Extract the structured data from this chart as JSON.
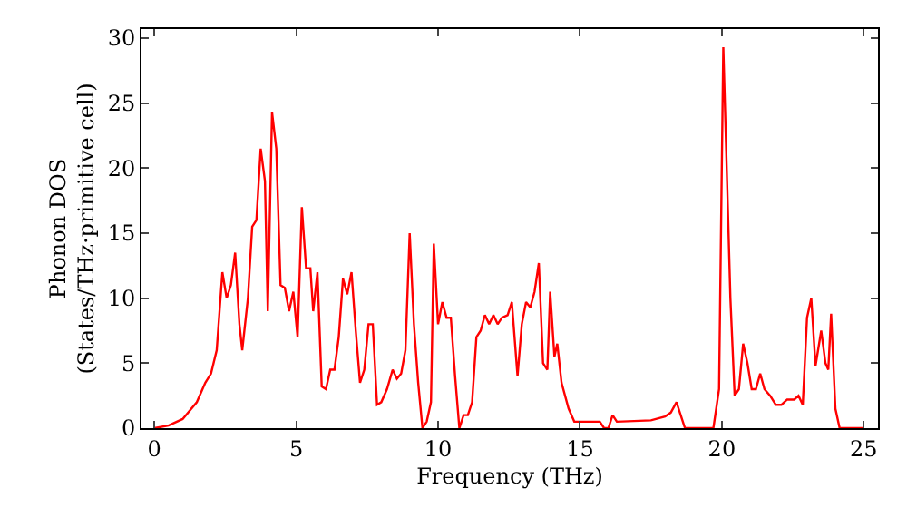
{
  "chart_data": {
    "type": "line",
    "xlabel": "Frequency (THz)",
    "ylabel": "Phonon DOS\n(States/THz·primitive cell)",
    "xlim": [
      -0.45,
      25.5
    ],
    "ylim": [
      0,
      30.7
    ],
    "xticks": [
      0,
      5,
      10,
      15,
      20,
      25
    ],
    "yticks": [
      0,
      5,
      10,
      15,
      20,
      25,
      30
    ],
    "marker": "none",
    "line_style": "solid",
    "x": [
      0,
      0.5,
      1,
      1.5,
      1.8,
      2,
      2.2,
      2.4,
      2.55,
      2.7,
      2.85,
      3.0,
      3.1,
      3.3,
      3.45,
      3.6,
      3.75,
      3.9,
      4.0,
      4.15,
      4.3,
      4.45,
      4.6,
      4.75,
      4.9,
      5.05,
      5.2,
      5.35,
      5.5,
      5.6,
      5.75,
      5.9,
      6.05,
      6.2,
      6.35,
      6.5,
      6.65,
      6.8,
      6.95,
      7.1,
      7.25,
      7.4,
      7.55,
      7.7,
      7.85,
      8.0,
      8.2,
      8.4,
      8.55,
      8.7,
      8.85,
      9.0,
      9.15,
      9.3,
      9.45,
      9.6,
      9.75,
      9.85,
      10.0,
      10.15,
      10.3,
      10.45,
      10.6,
      10.75,
      10.9,
      11.05,
      11.2,
      11.35,
      11.5,
      11.65,
      11.8,
      11.95,
      12.1,
      12.25,
      12.45,
      12.6,
      12.8,
      12.95,
      13.1,
      13.25,
      13.4,
      13.55,
      13.7,
      13.85,
      13.95,
      14.1,
      14.2,
      14.35,
      14.6,
      14.8,
      15.5,
      15.7,
      15.85,
      16.0,
      16.15,
      16.3,
      17.5,
      18.0,
      18.2,
      18.4,
      18.7,
      19.7,
      19.9,
      20.05,
      20.3,
      20.45,
      20.6,
      20.75,
      20.9,
      21.05,
      21.2,
      21.35,
      21.5,
      21.7,
      21.9,
      22.1,
      22.3,
      22.55,
      22.7,
      22.85,
      23.0,
      23.15,
      23.3,
      23.5,
      23.65,
      23.75,
      23.85,
      24.0,
      24.15,
      25
    ],
    "series": [
      {
        "color": "#ff0000",
        "values": [
          0,
          0.2,
          0.7,
          2,
          3.5,
          4.2,
          6,
          12,
          10,
          11,
          13.5,
          8,
          6,
          10,
          15.5,
          16,
          21.5,
          19,
          9,
          24.3,
          21.5,
          11,
          10.8,
          9,
          10.5,
          7,
          17,
          12.3,
          12.3,
          9,
          12,
          3.2,
          3,
          4.5,
          4.5,
          7,
          11.5,
          10.3,
          12,
          7.5,
          3.5,
          4.5,
          8,
          8,
          1.8,
          2,
          3,
          4.5,
          3.8,
          4.2,
          6,
          15,
          8,
          3.5,
          0,
          0.5,
          2,
          14.2,
          8,
          9.7,
          8.5,
          8.5,
          4,
          0,
          1,
          1,
          2,
          7,
          7.5,
          8.7,
          8,
          8.7,
          8,
          8.5,
          8.7,
          9.7,
          4,
          8,
          9.7,
          9.3,
          10.5,
          12.7,
          5,
          4.5,
          10.5,
          5.5,
          6.5,
          3.5,
          1.5,
          0.5,
          0.5,
          0.5,
          0,
          0,
          1,
          0.5,
          0.6,
          0.9,
          1.2,
          2,
          0,
          0,
          3,
          29.3,
          10,
          2.5,
          3,
          6.5,
          5,
          3,
          3,
          4.2,
          3,
          2.5,
          1.8,
          1.8,
          2.2,
          2.2,
          2.5,
          1.8,
          8.5,
          10,
          4.8,
          7.5,
          5,
          4.5,
          8.8,
          1.5,
          0,
          0
        ]
      }
    ]
  }
}
